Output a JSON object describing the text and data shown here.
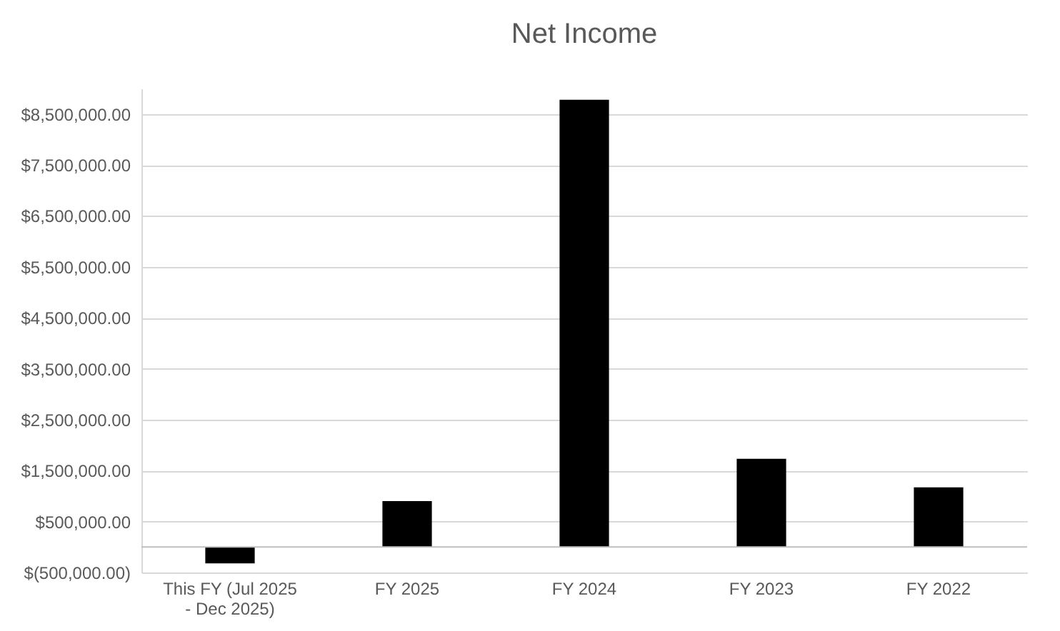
{
  "chart_data": {
    "type": "bar",
    "title": "Net Income",
    "categories": [
      "This FY (Jul 2025 - Dec 2025)",
      "FY 2025",
      "FY 2024",
      "FY 2023",
      "FY 2022"
    ],
    "values": [
      -320000,
      900000,
      8780000,
      1730000,
      1170000
    ],
    "color": "#000000",
    "ylim": [
      -500000,
      9000000
    ],
    "yticks": [
      {
        "value": -500000,
        "label": "$(500,000.00)"
      },
      {
        "value": 500000,
        "label": "$500,000.00"
      },
      {
        "value": 1500000,
        "label": "$1,500,000.00"
      },
      {
        "value": 2500000,
        "label": "$2,500,000.00"
      },
      {
        "value": 3500000,
        "label": "$3,500,000.00"
      },
      {
        "value": 4500000,
        "label": "$4,500,000.00"
      },
      {
        "value": 5500000,
        "label": "$5,500,000.00"
      },
      {
        "value": 6500000,
        "label": "$6,500,000.00"
      },
      {
        "value": 7500000,
        "label": "$7,500,000.00"
      },
      {
        "value": 8500000,
        "label": "$8,500,000.00"
      }
    ],
    "ref_lines": [
      {
        "axis": "y",
        "value": 0,
        "color": "#bfbfbf"
      }
    ],
    "grid": true,
    "legend": false
  }
}
